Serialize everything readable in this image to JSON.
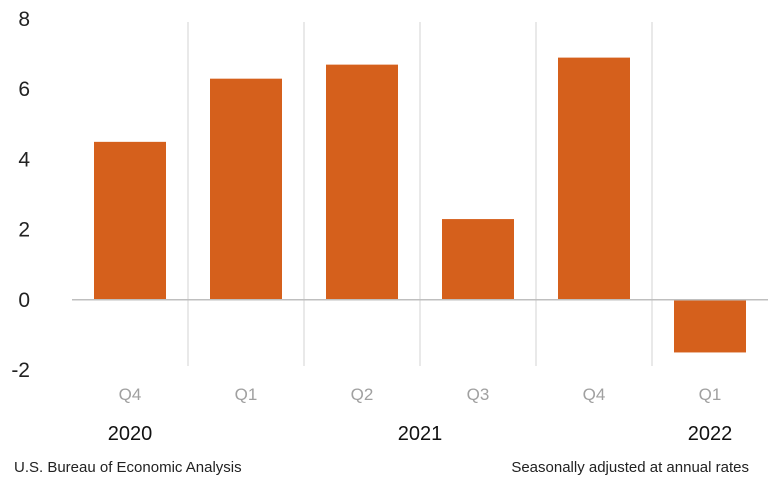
{
  "chart_data": {
    "type": "bar",
    "categories": [
      "Q4",
      "Q1",
      "Q2",
      "Q3",
      "Q4",
      "Q1"
    ],
    "year_groups": [
      {
        "label": "2020",
        "start": 0,
        "end": 0
      },
      {
        "label": "2021",
        "start": 1,
        "end": 4
      },
      {
        "label": "2022",
        "start": 5,
        "end": 5
      }
    ],
    "values": [
      4.5,
      6.3,
      6.7,
      2.3,
      6.9,
      -1.5
    ],
    "yticks": [
      "8",
      "6",
      "4",
      "2",
      "0",
      "-2"
    ],
    "ylim": [
      -2,
      8
    ],
    "title": "",
    "xlabel": "",
    "ylabel": "",
    "legend": "none",
    "grid": false,
    "bar_color": "#d5601c"
  },
  "footer": {
    "source": "U.S. Bureau of Economic Analysis",
    "note": "Seasonally adjusted at annual rates"
  }
}
